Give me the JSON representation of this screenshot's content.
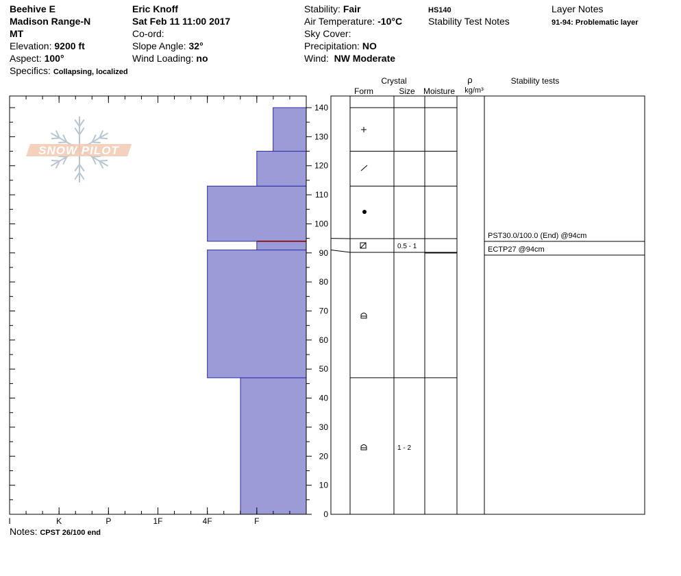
{
  "header": {
    "location": "Beehive E",
    "range": "Madison Range-N",
    "state": "MT",
    "elevation_label": "Elevation:",
    "elevation_value": "9200 ft",
    "aspect_label": "Aspect:",
    "aspect_value": "100°",
    "specifics_label": "Specifics:",
    "specifics_value": "Collapsing, localized",
    "observer": "Eric Knoff",
    "datetime": "Sat Feb 11 11:00 2017",
    "coord_label": "Co-ord:",
    "slope_label": "Slope Angle:",
    "slope_value": "32°",
    "wind_loading_label": "Wind Loading:",
    "wind_loading_value": "no",
    "stability_label": "Stability:",
    "stability_value": "Fair",
    "air_temp_label": "Air Temperature:",
    "air_temp_value": "-10°C",
    "sky_label": "Sky Cover:",
    "precip_label": "Precipitation:",
    "precip_value": "NO",
    "wind_label": "Wind:",
    "wind_value": "NW Moderate",
    "hs": "HS140",
    "stability_notes_label": "Stability Test Notes",
    "layer_notes_label": "Layer Notes",
    "layer_note": "91-94: Problematic layer"
  },
  "logo_text": "SNOW PILOT",
  "notes_label": "Notes:",
  "notes_value": "CPST 26/100 end",
  "colors": {
    "hardness_fill": "#9b9bd8",
    "hardness_stroke": "#2a2aa0",
    "problem_layer": "#8b1a2a"
  },
  "columns": {
    "crystal": "Crystal",
    "form": "Form",
    "size": "Size",
    "moisture": "Moisture",
    "rho": "ρ",
    "density_unit": "kg/m³",
    "stability_tests": "Stability tests"
  },
  "chart_data": {
    "type": "bar",
    "title": "",
    "ylabel": "",
    "xlabel": "",
    "ylim": [
      0,
      140
    ],
    "y_ticks": [
      0,
      10,
      20,
      30,
      40,
      50,
      60,
      70,
      80,
      90,
      100,
      110,
      120,
      130,
      140
    ],
    "hardness_scale": [
      "I",
      "K",
      "P",
      "1F",
      "4F",
      "F"
    ],
    "hardness_scale_values": [
      6,
      5,
      4,
      3,
      2,
      1
    ],
    "layers": [
      {
        "bottom": 0,
        "top": 47,
        "hardness": 1.33
      },
      {
        "bottom": 47,
        "top": 91,
        "hardness": 2
      },
      {
        "bottom": 91,
        "top": 94,
        "hardness": 1
      },
      {
        "bottom": 94,
        "top": 113,
        "hardness": 2
      },
      {
        "bottom": 113,
        "top": 125,
        "hardness": 1
      },
      {
        "bottom": 125,
        "top": 140,
        "hardness": 0.67
      }
    ],
    "problematic_layer_depth": 94,
    "crystal_layers": [
      {
        "bottom": 0,
        "top": 47,
        "form": "rounding-facet",
        "size": "1 - 2"
      },
      {
        "bottom": 47,
        "top": 91,
        "form": "rounding-facet",
        "size": ""
      },
      {
        "bottom": 91,
        "top": 95,
        "form": "facet-square",
        "size": "0.5 - 1"
      },
      {
        "bottom": 95,
        "top": 113,
        "form": "round",
        "size": ""
      },
      {
        "bottom": 113,
        "top": 125,
        "form": "decomposed",
        "size": ""
      },
      {
        "bottom": 125,
        "top": 140,
        "form": "new-snow",
        "size": ""
      }
    ],
    "stability_tests": [
      {
        "label": "PST30.0/100.0 (End) @94cm",
        "depth": 94
      },
      {
        "label": "ECTP27 @94cm",
        "depth": 94
      }
    ]
  }
}
